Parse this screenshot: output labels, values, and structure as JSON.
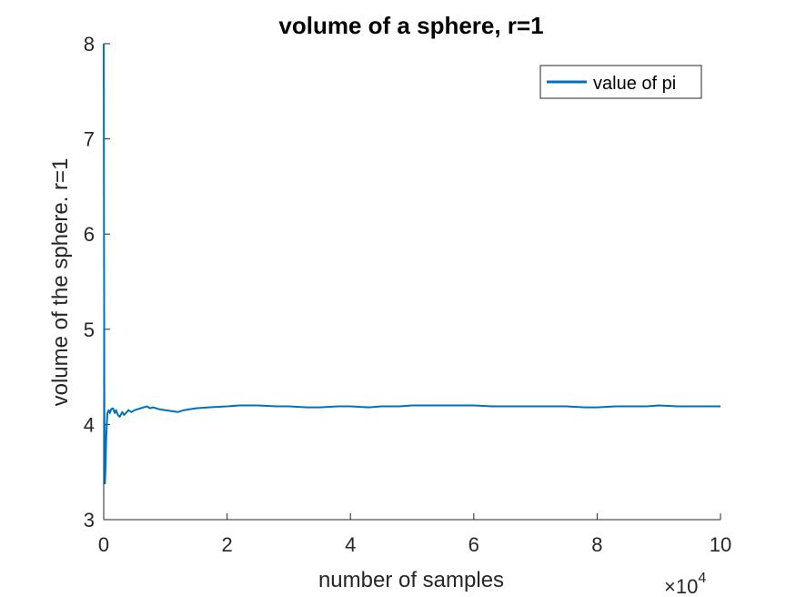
{
  "chart_data": {
    "type": "line",
    "title": "volume of a sphere, r=1",
    "xlabel": "number of samples",
    "ylabel": "volume of the sphere. r=1",
    "xlim": [
      0,
      100000
    ],
    "ylim": [
      3,
      8
    ],
    "x_tick_values": [
      0,
      20000,
      40000,
      60000,
      80000,
      100000
    ],
    "x_tick_labels": [
      "0",
      "2",
      "4",
      "6",
      "8",
      "10"
    ],
    "x_exponent_base": "×10",
    "x_exponent_power": "4",
    "y_tick_values": [
      3,
      4,
      5,
      6,
      7,
      8
    ],
    "y_tick_labels": [
      "3",
      "4",
      "5",
      "6",
      "7",
      "8"
    ],
    "grid": false,
    "legend_position": "top-right",
    "series": [
      {
        "name": "value of pi",
        "color": "#0072BD",
        "x": [
          1,
          50,
          100,
          150,
          200,
          300,
          400,
          500,
          600,
          800,
          1000,
          1200,
          1500,
          1800,
          2000,
          2300,
          2600,
          3000,
          3300,
          3600,
          4000,
          4500,
          5000,
          5500,
          6000,
          6500,
          7000,
          7500,
          8000,
          9000,
          10000,
          11000,
          12000,
          13000,
          14000,
          15000,
          17000,
          20000,
          22000,
          25000,
          28000,
          30000,
          33000,
          35000,
          38000,
          40000,
          43000,
          45000,
          48000,
          50000,
          53000,
          55000,
          58000,
          60000,
          63000,
          65000,
          68000,
          70000,
          73000,
          75000,
          78000,
          80000,
          83000,
          85000,
          88000,
          90000,
          93000,
          95000,
          98000,
          100000
        ],
        "y": [
          8.0,
          6.0,
          4.3,
          3.55,
          3.38,
          3.55,
          3.85,
          4.0,
          4.12,
          4.15,
          4.12,
          4.16,
          4.17,
          4.12,
          4.15,
          4.1,
          4.08,
          4.13,
          4.1,
          4.12,
          4.15,
          4.13,
          4.15,
          4.16,
          4.17,
          4.18,
          4.19,
          4.17,
          4.18,
          4.16,
          4.15,
          4.14,
          4.13,
          4.15,
          4.16,
          4.17,
          4.18,
          4.19,
          4.2,
          4.2,
          4.19,
          4.19,
          4.18,
          4.18,
          4.19,
          4.19,
          4.18,
          4.19,
          4.19,
          4.2,
          4.2,
          4.2,
          4.2,
          4.2,
          4.19,
          4.19,
          4.19,
          4.19,
          4.19,
          4.19,
          4.18,
          4.18,
          4.19,
          4.19,
          4.19,
          4.2,
          4.19,
          4.19,
          4.19,
          4.19
        ]
      }
    ]
  }
}
